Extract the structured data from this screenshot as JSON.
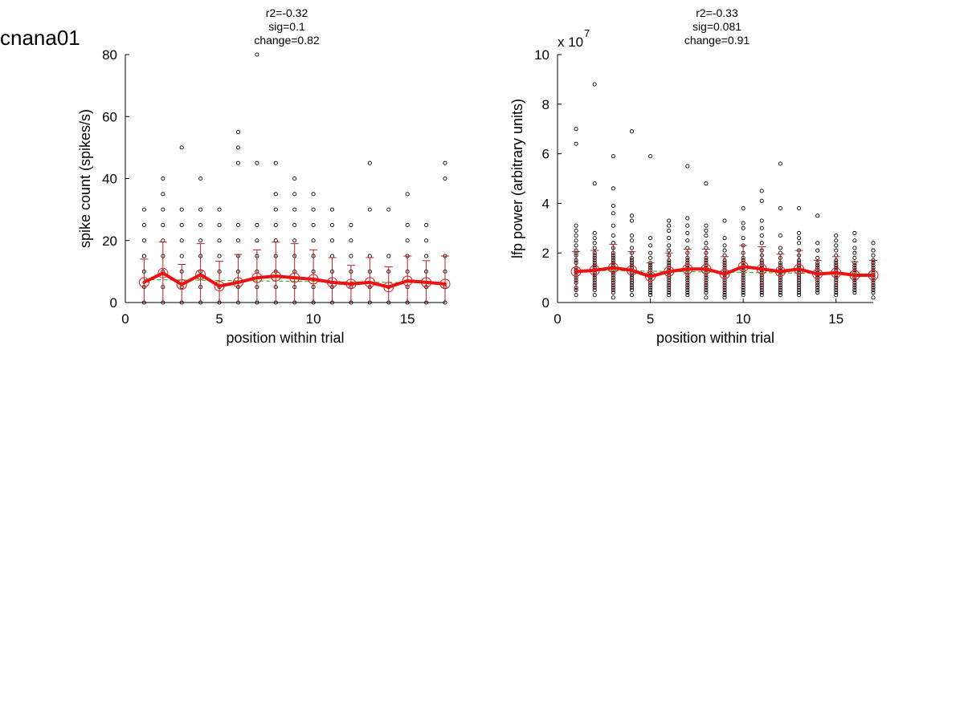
{
  "figure_title": "cnana01",
  "colors": {
    "mean_line": "#ee1111",
    "error_bar": "#b22222",
    "fit_line": "#33bb33",
    "points": "#000000",
    "mean_marker": "#ee1111"
  },
  "chart_data": [
    {
      "type": "scatter",
      "stats": [
        "r2=-0.32",
        "sig=0.1",
        "change=0.82"
      ],
      "xlabel": "position within trial",
      "ylabel": "spike count (spikes/s)",
      "exponent_label": "",
      "xlim": [
        0,
        17
      ],
      "ylim": [
        0,
        80
      ],
      "xticks": [
        0,
        5,
        10,
        15
      ],
      "yticks": [
        0,
        20,
        40,
        60,
        80
      ],
      "grid": false,
      "points": [
        {
          "x": 1,
          "values": [
            0,
            5,
            10,
            15,
            20,
            25,
            30
          ]
        },
        {
          "x": 2,
          "values": [
            0,
            5,
            10,
            15,
            20,
            25,
            30,
            35,
            40
          ]
        },
        {
          "x": 3,
          "values": [
            0,
            5,
            10,
            15,
            20,
            25,
            30,
            50
          ]
        },
        {
          "x": 4,
          "values": [
            0,
            5,
            10,
            15,
            20,
            25,
            30,
            40
          ]
        },
        {
          "x": 5,
          "values": [
            0,
            5,
            10,
            15,
            20,
            25,
            30
          ]
        },
        {
          "x": 6,
          "values": [
            0,
            5,
            10,
            15,
            20,
            25,
            45,
            50,
            55
          ]
        },
        {
          "x": 7,
          "values": [
            0,
            5,
            10,
            15,
            20,
            25,
            45,
            80
          ]
        },
        {
          "x": 8,
          "values": [
            0,
            5,
            10,
            15,
            20,
            25,
            30,
            35,
            45
          ]
        },
        {
          "x": 9,
          "values": [
            0,
            5,
            10,
            15,
            20,
            25,
            30,
            35,
            40
          ]
        },
        {
          "x": 10,
          "values": [
            0,
            5,
            10,
            15,
            20,
            25,
            30,
            35
          ]
        },
        {
          "x": 11,
          "values": [
            0,
            5,
            10,
            15,
            20,
            25,
            30
          ]
        },
        {
          "x": 12,
          "values": [
            0,
            5,
            10,
            15,
            20,
            25
          ]
        },
        {
          "x": 13,
          "values": [
            0,
            5,
            10,
            15,
            30,
            45
          ]
        },
        {
          "x": 14,
          "values": [
            0,
            5,
            10,
            15,
            30
          ]
        },
        {
          "x": 15,
          "values": [
            0,
            5,
            10,
            15,
            20,
            25,
            35
          ]
        },
        {
          "x": 16,
          "values": [
            0,
            5,
            10,
            15,
            20,
            25
          ]
        },
        {
          "x": 17,
          "values": [
            0,
            5,
            10,
            15,
            40,
            45
          ]
        }
      ],
      "means": {
        "x": [
          1,
          2,
          3,
          4,
          5,
          6,
          7,
          8,
          9,
          10,
          11,
          12,
          13,
          14,
          15,
          16,
          17
        ],
        "y": [
          6.5,
          9.5,
          5.8,
          9,
          5.3,
          6.5,
          8,
          8.5,
          8,
          7.5,
          6.5,
          6,
          6.5,
          5,
          7,
          6.5,
          6
        ],
        "error": [
          7.5,
          10,
          6.5,
          10,
          8,
          9,
          9,
          11,
          11,
          9.5,
          8,
          6,
          8,
          6.5,
          8,
          7,
          9
        ]
      },
      "fit": {
        "x": [
          1,
          17
        ],
        "y": [
          7.4,
          6.3
        ]
      }
    },
    {
      "type": "scatter",
      "stats": [
        "r2=-0.33",
        "sig=0.081",
        "change=0.91"
      ],
      "xlabel": "position within trial",
      "ylabel": "lfp power (arbitrary units)",
      "exponent_label": "x 10",
      "exponent_power": "7",
      "xlim": [
        0,
        17
      ],
      "ylim": [
        0,
        10
      ],
      "xticks": [
        0,
        5,
        10,
        15
      ],
      "yticks": [
        0,
        2,
        4,
        6,
        8,
        10
      ],
      "grid": false,
      "points": [
        {
          "x": 1,
          "values": [
            0.3,
            0.5,
            0.6,
            0.8,
            0.9,
            1.0,
            1.1,
            1.2,
            1.3,
            1.4,
            1.6,
            1.7,
            1.9,
            2.0,
            2.1,
            2.3,
            2.5,
            2.7,
            2.9,
            3.1,
            6.4,
            7.0
          ]
        },
        {
          "x": 2,
          "values": [
            0.3,
            0.5,
            0.6,
            0.7,
            0.8,
            0.9,
            1.0,
            1.1,
            1.2,
            1.3,
            1.4,
            1.5,
            1.6,
            1.7,
            1.8,
            1.9,
            2.0,
            2.2,
            2.4,
            2.6,
            2.8,
            4.8,
            8.8
          ]
        },
        {
          "x": 3,
          "values": [
            0.2,
            0.4,
            0.5,
            0.6,
            0.7,
            0.8,
            0.9,
            1.0,
            1.1,
            1.2,
            1.3,
            1.4,
            1.5,
            1.6,
            1.7,
            1.8,
            1.9,
            2.0,
            2.2,
            2.4,
            2.7,
            3.1,
            3.6,
            3.9,
            4.6,
            5.9
          ]
        },
        {
          "x": 4,
          "values": [
            0.3,
            0.5,
            0.6,
            0.7,
            0.8,
            0.9,
            1.0,
            1.1,
            1.2,
            1.3,
            1.4,
            1.5,
            1.6,
            1.7,
            1.8,
            2.0,
            2.2,
            2.5,
            2.7,
            3.3,
            3.5,
            6.9
          ]
        },
        {
          "x": 5,
          "values": [
            0.3,
            0.4,
            0.5,
            0.6,
            0.7,
            0.8,
            0.9,
            1.0,
            1.1,
            1.2,
            1.3,
            1.4,
            1.5,
            1.6,
            1.8,
            2.0,
            2.3,
            2.6,
            5.9
          ]
        },
        {
          "x": 6,
          "values": [
            0.3,
            0.4,
            0.5,
            0.6,
            0.7,
            0.8,
            0.9,
            1.0,
            1.1,
            1.2,
            1.3,
            1.4,
            1.5,
            1.6,
            1.7,
            1.9,
            2.1,
            2.3,
            2.6,
            2.9,
            3.1,
            3.3
          ]
        },
        {
          "x": 7,
          "values": [
            0.3,
            0.4,
            0.5,
            0.6,
            0.7,
            0.8,
            0.9,
            1.0,
            1.1,
            1.2,
            1.3,
            1.4,
            1.5,
            1.6,
            1.7,
            1.8,
            2.0,
            2.2,
            2.5,
            2.8,
            3.1,
            3.4,
            5.5
          ]
        },
        {
          "x": 8,
          "values": [
            0.2,
            0.4,
            0.5,
            0.6,
            0.7,
            0.8,
            0.9,
            1.0,
            1.1,
            1.2,
            1.3,
            1.4,
            1.5,
            1.6,
            1.7,
            1.8,
            2.0,
            2.2,
            2.4,
            2.7,
            2.9,
            3.1,
            4.8
          ]
        },
        {
          "x": 9,
          "values": [
            0.2,
            0.3,
            0.4,
            0.5,
            0.6,
            0.7,
            0.8,
            0.9,
            1.0,
            1.1,
            1.2,
            1.3,
            1.4,
            1.5,
            1.6,
            1.7,
            1.9,
            2.1,
            2.3,
            2.6,
            3.3
          ]
        },
        {
          "x": 10,
          "values": [
            0.3,
            0.4,
            0.5,
            0.6,
            0.7,
            0.8,
            0.9,
            1.0,
            1.1,
            1.2,
            1.3,
            1.4,
            1.5,
            1.6,
            1.7,
            1.8,
            2.0,
            2.3,
            2.6,
            3.0,
            3.2,
            3.8
          ]
        },
        {
          "x": 11,
          "values": [
            0.3,
            0.4,
            0.5,
            0.6,
            0.7,
            0.8,
            0.9,
            1.0,
            1.1,
            1.2,
            1.3,
            1.4,
            1.5,
            1.6,
            1.7,
            1.9,
            2.1,
            2.4,
            2.7,
            3.0,
            3.3,
            4.1,
            4.5
          ]
        },
        {
          "x": 12,
          "values": [
            0.3,
            0.4,
            0.5,
            0.6,
            0.7,
            0.8,
            0.9,
            1.0,
            1.1,
            1.2,
            1.3,
            1.4,
            1.5,
            1.6,
            1.8,
            2.0,
            2.2,
            2.7,
            3.8,
            5.6
          ]
        },
        {
          "x": 13,
          "values": [
            0.3,
            0.4,
            0.5,
            0.6,
            0.7,
            0.8,
            0.9,
            1.0,
            1.1,
            1.2,
            1.3,
            1.4,
            1.5,
            1.6,
            1.7,
            1.9,
            2.1,
            2.4,
            2.6,
            2.8,
            3.8
          ]
        },
        {
          "x": 14,
          "values": [
            0.4,
            0.5,
            0.6,
            0.7,
            0.8,
            0.9,
            1.0,
            1.1,
            1.2,
            1.3,
            1.4,
            1.5,
            1.6,
            1.8,
            2.1,
            2.4,
            3.5
          ]
        },
        {
          "x": 15,
          "values": [
            0.3,
            0.4,
            0.5,
            0.6,
            0.7,
            0.8,
            0.9,
            1.0,
            1.1,
            1.2,
            1.3,
            1.4,
            1.5,
            1.6,
            1.7,
            1.9,
            2.1,
            2.3,
            2.5,
            2.7
          ]
        },
        {
          "x": 16,
          "values": [
            0.4,
            0.5,
            0.6,
            0.7,
            0.8,
            0.9,
            1.0,
            1.1,
            1.2,
            1.3,
            1.4,
            1.5,
            1.6,
            1.8,
            2.0,
            2.2,
            2.5,
            2.8
          ]
        },
        {
          "x": 17,
          "values": [
            0.2,
            0.4,
            0.5,
            0.6,
            0.7,
            0.8,
            0.9,
            1.0,
            1.1,
            1.2,
            1.3,
            1.4,
            1.5,
            1.6,
            1.7,
            1.9,
            2.1,
            2.4
          ]
        }
      ],
      "means": {
        "x": [
          1,
          2,
          3,
          4,
          5,
          6,
          7,
          8,
          9,
          10,
          11,
          12,
          13,
          14,
          15,
          16,
          17
        ],
        "y": [
          1.25,
          1.3,
          1.4,
          1.3,
          1.05,
          1.25,
          1.35,
          1.35,
          1.15,
          1.45,
          1.35,
          1.25,
          1.35,
          1.15,
          1.2,
          1.1,
          1.1
        ],
        "error": [
          0.8,
          0.8,
          0.95,
          0.75,
          0.55,
          0.75,
          0.8,
          0.8,
          0.7,
          0.85,
          0.9,
          0.7,
          0.75,
          0.55,
          0.65,
          0.55,
          0.6
        ]
      },
      "fit": {
        "x": [
          1,
          17
        ],
        "y": [
          1.3,
          1.15
        ]
      }
    }
  ]
}
